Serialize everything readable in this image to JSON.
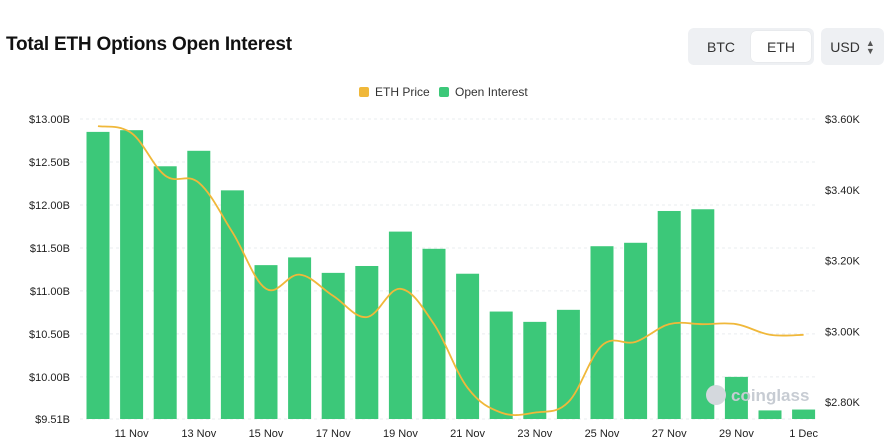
{
  "header": {
    "title": "Total ETH Options Open Interest",
    "asset_tabs": [
      {
        "label": "BTC",
        "active": false
      },
      {
        "label": "ETH",
        "active": true
      }
    ],
    "currency_select": {
      "value": "USD"
    }
  },
  "watermark": "coinglass",
  "colors": {
    "bar": "#3cc879",
    "price_line": "#f0b83a",
    "grid": "#e9ecef"
  },
  "chart_data": {
    "type": "bar",
    "legend": [
      {
        "name": "ETH Price",
        "color": "#f0b83a"
      },
      {
        "name": "Open Interest",
        "color": "#3cc879"
      }
    ],
    "legend_position": "top-center",
    "x_tick_labels": [
      "11 Nov",
      "13 Nov",
      "15 Nov",
      "17 Nov",
      "19 Nov",
      "21 Nov",
      "23 Nov",
      "25 Nov",
      "27 Nov",
      "29 Nov",
      "1 Dec"
    ],
    "y_left": {
      "ticks": [
        "$13.00B",
        "$12.50B",
        "$12.00B",
        "$11.50B",
        "$11.00B",
        "$10.50B",
        "$10.00B",
        "$9.51B"
      ],
      "range": [
        9.51,
        13.0
      ],
      "unit": "B USD"
    },
    "y_right": {
      "ticks": [
        "$3.60K",
        "$3.40K",
        "$3.20K",
        "$3.00K",
        "$2.80K"
      ],
      "range": [
        2.77,
        3.6
      ],
      "unit": "K USD"
    },
    "series": [
      {
        "name": "Open Interest",
        "type": "bar",
        "axis": "left",
        "values": [
          12.85,
          12.87,
          12.45,
          12.63,
          12.17,
          11.3,
          11.39,
          11.21,
          11.29,
          11.69,
          11.49,
          11.2,
          10.76,
          10.64,
          10.78,
          11.52,
          11.56,
          11.93,
          11.95,
          10.0,
          9.61,
          9.62
        ]
      },
      {
        "name": "ETH Price",
        "type": "line",
        "axis": "right",
        "values": [
          3.58,
          3.56,
          3.44,
          3.42,
          3.28,
          3.12,
          3.16,
          3.1,
          3.04,
          3.12,
          3.02,
          2.84,
          2.77,
          2.77,
          2.8,
          2.96,
          2.97,
          3.02,
          3.02,
          3.02,
          2.99,
          2.99
        ]
      }
    ]
  }
}
